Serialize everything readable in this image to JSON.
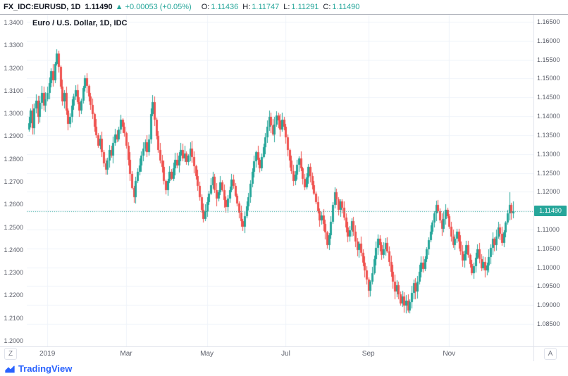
{
  "header": {
    "symbol": "FX_IDC:EURUSD, 1D",
    "last_price": "1.11490",
    "change_arrow": "▲",
    "change": "+0.00053 (+0.05%)",
    "ohlc": [
      {
        "label": "O:",
        "value": "1.11436"
      },
      {
        "label": "H:",
        "value": "1.11747"
      },
      {
        "label": "L:",
        "value": "1.11291"
      },
      {
        "label": "C:",
        "value": "1.11490"
      }
    ]
  },
  "legend": {
    "title": "Euro / U.S. Dollar, 1D, IDC"
  },
  "left_axis": {
    "labels": [
      "1.3400",
      "1.3300",
      "1.3200",
      "1.3100",
      "1.3000",
      "1.2900",
      "1.2800",
      "1.2700",
      "1.2600",
      "1.2500",
      "1.2400",
      "1.2300",
      "1.2200",
      "1.2100",
      "1.2000"
    ],
    "top_value": 1.34,
    "bottom_value": 1.2
  },
  "right_axis": {
    "labels": [
      "1.16500",
      "1.16000",
      "1.15500",
      "1.15000",
      "1.14500",
      "1.14000",
      "1.13500",
      "1.13000",
      "1.12500",
      "1.12000",
      "1.11500",
      "1.11000",
      "1.10500",
      "1.10000",
      "1.09500",
      "1.09000",
      "1.08500"
    ],
    "current_price": "1.11490"
  },
  "time_axis": {
    "timezone_button": "Z",
    "auto_button": "A"
  },
  "footer": {
    "brand": "TradingView"
  },
  "colors": {
    "up": "#26a69a",
    "down": "#ef5350",
    "price_line": "#26a69a",
    "grid": "#f0f3fa",
    "axis_text": "#5d606b",
    "header_text": "#131722"
  },
  "chart_data": {
    "type": "candlestick",
    "title": "Euro / U.S. Dollar, 1D, IDC",
    "symbol": "FX_IDC:EURUSD",
    "interval": "1D",
    "y_axis": {
      "min": 1.085,
      "max": 1.165,
      "step": 0.005
    },
    "price_line_value": 1.1149,
    "first_open": 1.1365,
    "last_candle": {
      "o": 1.11436,
      "h": 1.11747,
      "l": 1.11291,
      "c": 1.1149
    },
    "wick_overrides": {
      "202": [
        null,
        1.0879
      ],
      "256": [
        1.1198,
        null
      ],
      "15": [
        1.1578,
        null
      ]
    },
    "x_ticks": [
      {
        "label": "2019",
        "index": 10
      },
      {
        "label": "Mar",
        "index": 52
      },
      {
        "label": "May",
        "index": 95
      },
      {
        "label": "Jul",
        "index": 137
      },
      {
        "label": "Sep",
        "index": 181
      },
      {
        "label": "Nov",
        "index": 224
      }
    ],
    "closes": [
      1.1382,
      1.1415,
      1.1368,
      1.142,
      1.1442,
      1.1398,
      1.1435,
      1.1461,
      1.1428,
      1.1445,
      1.1462,
      1.1488,
      1.152,
      1.1495,
      1.1538,
      1.1567,
      1.153,
      1.1478,
      1.144,
      1.1462,
      1.1415,
      1.138,
      1.1398,
      1.1428,
      1.1452,
      1.147,
      1.1438,
      1.1415,
      1.1442,
      1.1475,
      1.15,
      1.148,
      1.1452,
      1.143,
      1.1405,
      1.1372,
      1.135,
      1.1322,
      1.134,
      1.1305,
      1.1275,
      1.1258,
      1.1282,
      1.131,
      1.1295,
      1.133,
      1.1352,
      1.1338,
      1.1365,
      1.139,
      1.1372,
      1.1355,
      1.1322,
      1.1285,
      1.1248,
      1.121,
      1.1185,
      1.1228,
      1.1252,
      1.127,
      1.1295,
      1.1315,
      1.1332,
      1.1305,
      1.1338,
      1.1405,
      1.1438,
      1.139,
      1.1348,
      1.131,
      1.1282,
      1.1265,
      1.1228,
      1.1205,
      1.1228,
      1.1252,
      1.1235,
      1.1262,
      1.1285,
      1.127,
      1.1295,
      1.131,
      1.1288,
      1.1302,
      1.1278,
      1.1295,
      1.1315,
      1.1292,
      1.1268,
      1.1242,
      1.1215,
      1.1185,
      1.1152,
      1.1128,
      1.1148,
      1.1172,
      1.1195,
      1.1218,
      1.124,
      1.1205,
      1.1182,
      1.1198,
      1.1225,
      1.1205,
      1.1178,
      1.116,
      1.1182,
      1.1205,
      1.1232,
      1.1215,
      1.119,
      1.1168,
      1.1145,
      1.1122,
      1.1108,
      1.1135,
      1.1162,
      1.1185,
      1.1222,
      1.1252,
      1.128,
      1.1305,
      1.1285,
      1.1262,
      1.1292,
      1.1318,
      1.1345,
      1.1372,
      1.1398,
      1.1375,
      1.1352,
      1.1378,
      1.1402,
      1.1388,
      1.1365,
      1.139,
      1.1372,
      1.1345,
      1.131,
      1.1282,
      1.1255,
      1.1228,
      1.1245,
      1.1272,
      1.1288,
      1.1262,
      1.1235,
      1.1212,
      1.1238,
      1.1265,
      1.1242,
      1.1218,
      1.1195,
      1.1172,
      1.1148,
      1.1125,
      1.1138,
      1.1115,
      1.1092,
      1.1058,
      1.1085,
      1.112,
      1.1165,
      1.1198,
      1.118,
      1.1152,
      1.1175,
      1.1158,
      1.1132,
      1.1105,
      1.1082,
      1.1098,
      1.1122,
      1.1095,
      1.1068,
      1.1045,
      1.1062,
      1.1038,
      1.1012,
      1.0992,
      1.0968,
      1.0938,
      1.0962,
      1.0985,
      1.1022,
      1.1052,
      1.1075,
      1.1058,
      1.1032,
      1.1048,
      1.1065,
      1.1042,
      1.1015,
      1.0988,
      1.0962,
      1.0935,
      1.0952,
      1.0928,
      1.0905,
      1.0922,
      1.0898,
      1.0912,
      1.0885,
      1.0908,
      1.0932,
      1.0958,
      1.0935,
      1.0962,
      1.0988,
      1.1012,
      1.0995,
      1.1022,
      1.1048,
      1.1072,
      1.1095,
      1.1118,
      1.1142,
      1.1165,
      1.1148,
      1.1125,
      1.1102,
      1.1128,
      1.1152,
      1.1135,
      1.1108,
      1.1082,
      1.1058,
      1.1075,
      1.1095,
      1.1068,
      1.1042,
      1.1018,
      1.1035,
      1.1058,
      1.1032,
      1.1008,
      1.0985,
      1.1002,
      1.1025,
      1.1048,
      1.1022,
      1.0998,
      1.1015,
      1.0992,
      1.1005,
      1.1028,
      1.1052,
      1.1075,
      1.1058,
      1.1082,
      1.1105,
      1.1088,
      1.1065,
      1.1092,
      1.1118,
      1.1142,
      1.1165,
      1.1144,
      1.1149
    ]
  }
}
